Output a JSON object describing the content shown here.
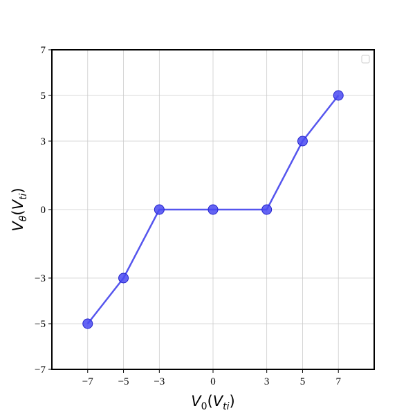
{
  "chart_data": {
    "type": "line",
    "x": [
      -7,
      -5,
      -3,
      0,
      3,
      5,
      7
    ],
    "series": [
      {
        "values": [
          -5,
          -3,
          0,
          0,
          0,
          3,
          5
        ]
      }
    ],
    "xlim": [
      -9,
      9
    ],
    "ylim": [
      -7,
      7
    ],
    "xticks": [
      -7,
      -5,
      -3,
      0,
      3,
      5,
      7
    ],
    "yticks": [
      -7,
      -5,
      -3,
      0,
      3,
      5,
      7
    ],
    "xtick_labels": [
      "−7",
      "−5",
      "−3",
      "0",
      "3",
      "5",
      "7"
    ],
    "ytick_labels": [
      "−7",
      "−5",
      "−3",
      "0",
      "3",
      "5",
      "7"
    ],
    "xlabel_parts": {
      "base": "V",
      "sub": "0",
      "open": "(",
      "inner": "V",
      "inner_sub": "ti",
      "close": ")"
    },
    "ylabel_parts": {
      "base": "V",
      "sub": "θ",
      "open": "(",
      "inner": "V",
      "inner_sub": "ti",
      "close": ")"
    },
    "grid": true,
    "legend": "top-right, empty",
    "colors": {
      "line": "#5555ee",
      "marker_fill": "#4a4af2",
      "marker_edge": "#2222cc"
    }
  }
}
